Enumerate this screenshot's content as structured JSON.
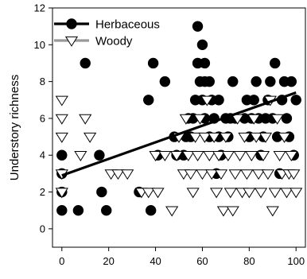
{
  "chart_data": {
    "type": "scatter",
    "title": "",
    "xlabel": "",
    "ylabel": "Understory richness",
    "xlim": [
      -4,
      104
    ],
    "ylim": [
      -1,
      12
    ],
    "xticks": [
      "0",
      "20",
      "40",
      "60",
      "80",
      "100"
    ],
    "yticks": [
      "0",
      "2",
      "4",
      "6",
      "8",
      "10",
      "12"
    ],
    "grid": false,
    "legend_position": "top-left",
    "series": [
      {
        "name": "Herbaceous",
        "marker": "filled-circle",
        "color": "#000000",
        "points": [
          [
            0,
            1
          ],
          [
            0,
            2
          ],
          [
            0,
            3
          ],
          [
            0,
            4
          ],
          [
            7,
            1
          ],
          [
            10,
            9
          ],
          [
            16,
            4
          ],
          [
            17,
            2
          ],
          [
            19,
            1
          ],
          [
            33,
            2
          ],
          [
            37,
            7
          ],
          [
            38,
            1
          ],
          [
            39,
            9
          ],
          [
            41,
            4
          ],
          [
            44,
            8
          ],
          [
            48,
            5
          ],
          [
            49,
            4
          ],
          [
            52,
            4
          ],
          [
            53,
            5
          ],
          [
            54,
            6
          ],
          [
            55,
            5
          ],
          [
            56,
            6
          ],
          [
            57,
            7
          ],
          [
            58,
            9
          ],
          [
            59,
            8
          ],
          [
            60,
            7
          ],
          [
            61,
            6
          ],
          [
            58,
            11
          ],
          [
            60,
            10
          ],
          [
            61,
            8
          ],
          [
            61,
            9
          ],
          [
            63,
            8
          ],
          [
            63,
            5
          ],
          [
            64,
            7
          ],
          [
            65,
            6
          ],
          [
            66,
            3
          ],
          [
            67,
            5
          ],
          [
            67,
            7
          ],
          [
            68,
            4
          ],
          [
            70,
            6
          ],
          [
            71,
            5
          ],
          [
            72,
            6
          ],
          [
            73,
            8
          ],
          [
            74,
            6
          ],
          [
            78,
            6
          ],
          [
            79,
            7
          ],
          [
            80,
            5
          ],
          [
            81,
            6
          ],
          [
            82,
            7
          ],
          [
            83,
            8
          ],
          [
            84,
            6
          ],
          [
            85,
            4
          ],
          [
            86,
            5
          ],
          [
            87,
            6
          ],
          [
            88,
            7
          ],
          [
            89,
            8
          ],
          [
            90,
            6
          ],
          [
            91,
            9
          ],
          [
            92,
            5
          ],
          [
            93,
            3
          ],
          [
            94,
            7
          ],
          [
            95,
            8
          ],
          [
            96,
            6
          ],
          [
            97,
            5
          ],
          [
            98,
            8
          ],
          [
            99,
            4
          ],
          [
            100,
            7
          ]
        ]
      },
      {
        "name": "Woody",
        "marker": "open-triangle-down",
        "color": "#000000",
        "points": [
          [
            0,
            7
          ],
          [
            0,
            6
          ],
          [
            0,
            5
          ],
          [
            0,
            2
          ],
          [
            0,
            3
          ],
          [
            8,
            4
          ],
          [
            10,
            6
          ],
          [
            12,
            5
          ],
          [
            21,
            3
          ],
          [
            24,
            3
          ],
          [
            28,
            3
          ],
          [
            34,
            2
          ],
          [
            37,
            2
          ],
          [
            40,
            4
          ],
          [
            41,
            2
          ],
          [
            44,
            4
          ],
          [
            47,
            1
          ],
          [
            49,
            4
          ],
          [
            50,
            5
          ],
          [
            52,
            3
          ],
          [
            53,
            6
          ],
          [
            54,
            4
          ],
          [
            55,
            3
          ],
          [
            56,
            2
          ],
          [
            57,
            5
          ],
          [
            58,
            4
          ],
          [
            59,
            6
          ],
          [
            60,
            3
          ],
          [
            61,
            5
          ],
          [
            62,
            7
          ],
          [
            63,
            4
          ],
          [
            64,
            3
          ],
          [
            65,
            5
          ],
          [
            66,
            2
          ],
          [
            67,
            4
          ],
          [
            68,
            3
          ],
          [
            69,
            1
          ],
          [
            70,
            5
          ],
          [
            71,
            4
          ],
          [
            72,
            2
          ],
          [
            73,
            1
          ],
          [
            74,
            3
          ],
          [
            75,
            6
          ],
          [
            76,
            4
          ],
          [
            77,
            2
          ],
          [
            78,
            5
          ],
          [
            79,
            3
          ],
          [
            80,
            2
          ],
          [
            81,
            4
          ],
          [
            82,
            6
          ],
          [
            83,
            5
          ],
          [
            84,
            3
          ],
          [
            85,
            2
          ],
          [
            86,
            4
          ],
          [
            87,
            5
          ],
          [
            88,
            3
          ],
          [
            89,
            7
          ],
          [
            90,
            1
          ],
          [
            91,
            2
          ],
          [
            92,
            6
          ],
          [
            93,
            4
          ],
          [
            94,
            3
          ],
          [
            95,
            5
          ],
          [
            96,
            2
          ],
          [
            97,
            3
          ],
          [
            98,
            4
          ],
          [
            99,
            3
          ],
          [
            100,
            2
          ]
        ]
      }
    ],
    "fit_line": {
      "name": "Herbaceous",
      "x": [
        0,
        100
      ],
      "y": [
        2.9,
        7.4
      ]
    }
  }
}
